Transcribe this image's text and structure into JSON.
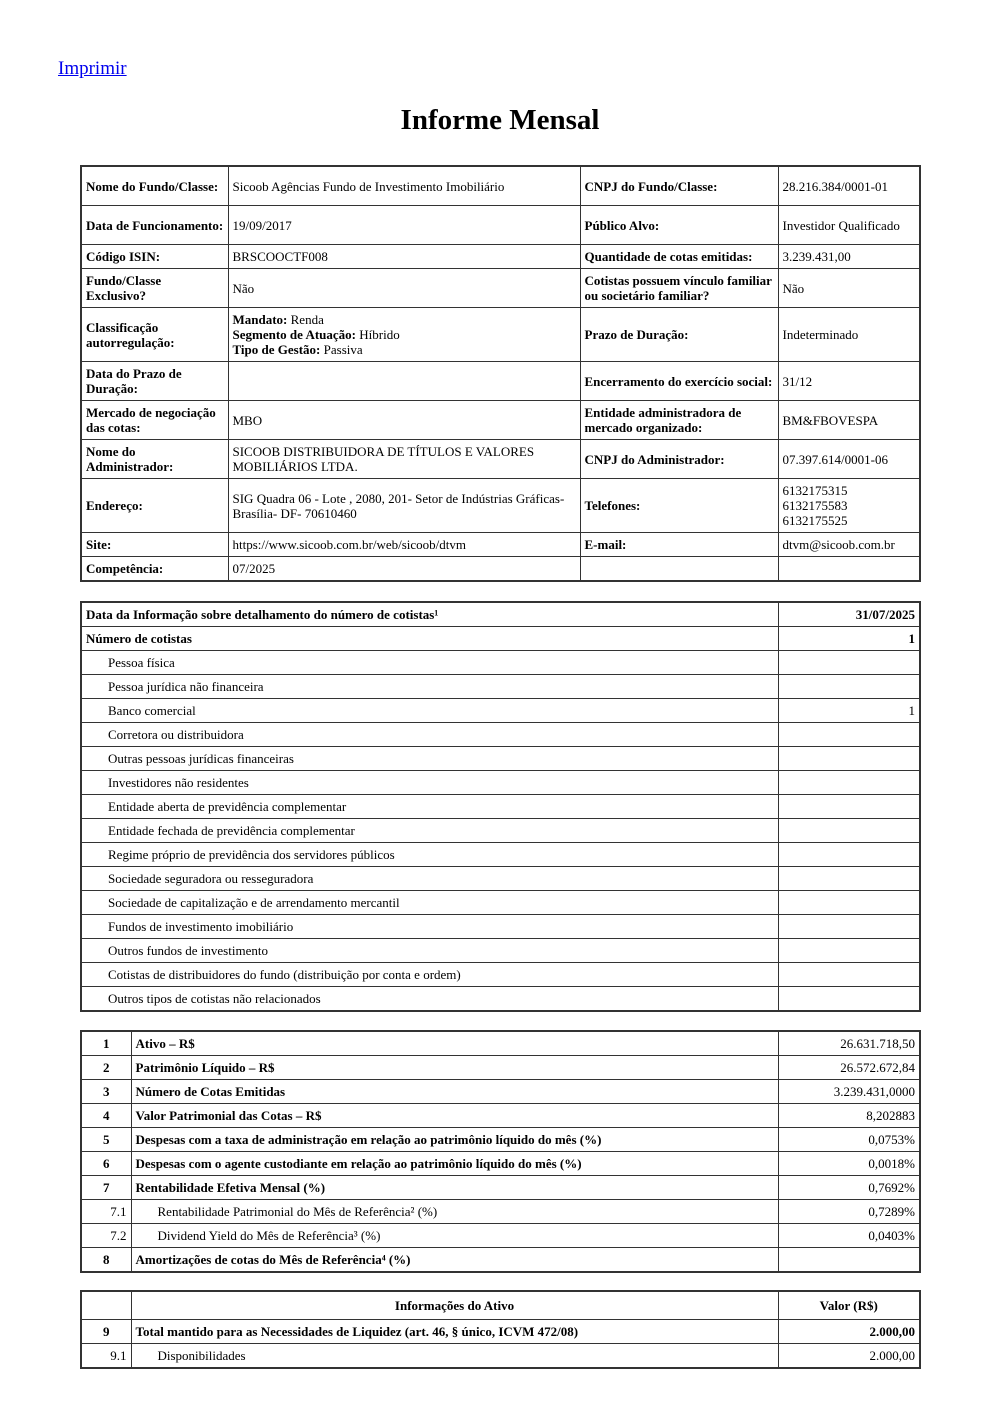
{
  "print_link": "Imprimir",
  "title": "Informe Mensal",
  "general": [
    {
      "l1": "Nome do Fundo/Classe:",
      "v1": "Sicoob Agências Fundo de Investimento Imobiliário",
      "l2": "CNPJ do Fundo/Classe:",
      "v2": "28.216.384/0001-01"
    },
    {
      "l1": "Data de Funcionamento:",
      "v1": "19/09/2017",
      "l2": "Público Alvo:",
      "v2": "Investidor Qualificado"
    },
    {
      "l1": "Código ISIN:",
      "v1": "BRSCOOCTF008",
      "l2": "Quantidade de cotas emitidas:",
      "v2": "3.239.431,00"
    },
    {
      "l1": "Fundo/Classe Exclusivo?",
      "v1": "Não",
      "l2": "Cotistas possuem vínculo familiar ou societário familiar?",
      "v2": "Não"
    },
    {
      "l1": "Classificação autorregulação:",
      "v1": "",
      "l2": "Prazo de Duração:",
      "v2": "Indeterminado"
    },
    {
      "l1": "Data do Prazo de Duração:",
      "v1": "",
      "l2": "Encerramento do exercício social:",
      "v2": "31/12"
    },
    {
      "l1": "Mercado de negociação das cotas:",
      "v1": "MBO",
      "l2": "Entidade administradora de mercado organizado:",
      "v2": "BM&FBOVESPA"
    },
    {
      "l1": "Nome do Administrador:",
      "v1": "SICOOB DISTRIBUIDORA DE TÍTULOS E VALORES MOBILIÁRIOS LTDA.",
      "l2": "CNPJ do Administrador:",
      "v2": "07.397.614/0001-06"
    },
    {
      "l1": "Endereço:",
      "v1": "SIG Quadra 06 - Lote , 2080, 201- Setor de Indústrias Gráficas- Brasília- DF- 70610460",
      "l2": "Telefones:",
      "v2": ""
    },
    {
      "l1": "Site:",
      "v1": "https://www.sicoob.com.br/web/sicoob/dtvm",
      "l2": "E-mail:",
      "v2": "dtvm@sicoob.com.br"
    },
    {
      "l1": "Competência:",
      "v1": "07/2025",
      "l2": "",
      "v2": ""
    }
  ],
  "classification": [
    {
      "label": "Mandato:",
      "value": " Renda"
    },
    {
      "label": "Segmento de Atuação:",
      "value": " Híbrido"
    },
    {
      "label": "Tipo de Gestão:",
      "value": " Passiva"
    }
  ],
  "phones": [
    "6132175315",
    "6132175583",
    "6132175525"
  ],
  "cotistas": {
    "header_label": "Data da Informação sobre detalhamento do número de cotistas¹",
    "header_date": "31/07/2025",
    "total_label": "Número de cotistas",
    "total_value": "1",
    "rows": [
      {
        "label": "Pessoa física",
        "value": ""
      },
      {
        "label": "Pessoa jurídica não financeira",
        "value": ""
      },
      {
        "label": "Banco comercial",
        "value": "1"
      },
      {
        "label": "Corretora ou distribuidora",
        "value": ""
      },
      {
        "label": "Outras pessoas jurídicas financeiras",
        "value": ""
      },
      {
        "label": "Investidores não residentes",
        "value": ""
      },
      {
        "label": "Entidade aberta de previdência complementar",
        "value": ""
      },
      {
        "label": "Entidade fechada de previdência complementar",
        "value": ""
      },
      {
        "label": "Regime próprio de previdência dos servidores públicos",
        "value": ""
      },
      {
        "label": "Sociedade seguradora ou resseguradora",
        "value": ""
      },
      {
        "label": "Sociedade de capitalização e de arrendamento mercantil",
        "value": ""
      },
      {
        "label": "Fundos de investimento imobiliário",
        "value": ""
      },
      {
        "label": "Outros fundos de investimento",
        "value": ""
      },
      {
        "label": "Cotistas de distribuidores do fundo (distribuição por conta e ordem)",
        "value": ""
      },
      {
        "label": "Outros tipos de cotistas não relacionados",
        "value": ""
      }
    ]
  },
  "indicators": [
    {
      "num": "1",
      "label": "Ativo – R$",
      "value": "26.631.718,50",
      "bold": true
    },
    {
      "num": "2",
      "label": "Patrimônio Líquido – R$",
      "value": "26.572.672,84",
      "bold": true
    },
    {
      "num": "3",
      "label": "Número de Cotas Emitidas",
      "value": "3.239.431,0000",
      "bold": true
    },
    {
      "num": "4",
      "label": "Valor Patrimonial das Cotas – R$",
      "value": "8,202883",
      "bold": true
    },
    {
      "num": "5",
      "label": "Despesas com a taxa de administração em relação ao patrimônio líquido do mês (%)",
      "value": "0,0753%",
      "bold": true
    },
    {
      "num": "6",
      "label": "Despesas com o agente custodiante em relação ao patrimônio líquido do mês (%)",
      "value": "0,0018%",
      "bold": true
    },
    {
      "num": "7",
      "label": "Rentabilidade Efetiva Mensal (%)",
      "value": "0,7692%",
      "bold": true
    },
    {
      "num": "7.1",
      "label": "Rentabilidade Patrimonial do Mês de Referência² (%)",
      "value": "0,7289%",
      "bold": false
    },
    {
      "num": "7.2",
      "label": "Dividend Yield do Mês de Referência³ (%)",
      "value": "0,0403%",
      "bold": false
    },
    {
      "num": "8",
      "label": "Amortizações de cotas do Mês de Referência⁴ (%)",
      "value": "",
      "bold": true
    }
  ],
  "assets": {
    "header_label": "Informações do Ativo",
    "header_value": "Valor (R$)",
    "rows": [
      {
        "num": "9",
        "label": "Total mantido para as Necessidades de Liquidez (art. 46, § único, ICVM 472/08)",
        "value": "2.000,00",
        "bold": true
      },
      {
        "num": "9.1",
        "label": "Disponibilidades",
        "value": "2.000,00",
        "bold": false
      }
    ]
  }
}
